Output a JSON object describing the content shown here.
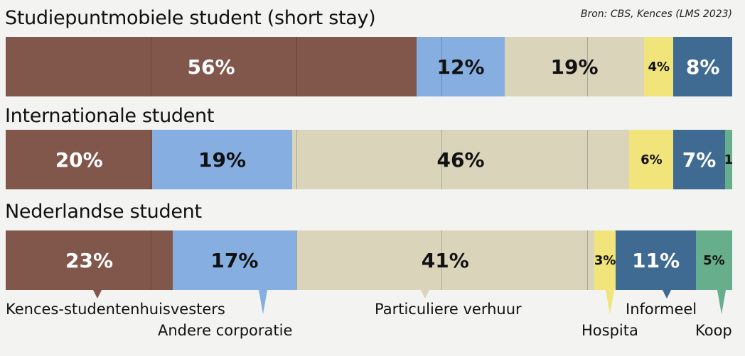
{
  "source": "Bron: CBS, Kences (LMS 2023)",
  "categories": [
    {
      "name": "Kences-studentenhuisvesters",
      "color": "#82574b",
      "text": "#ffffff"
    },
    {
      "name": "Andere corporatie",
      "color": "#86aee0",
      "text": "#111111"
    },
    {
      "name": "Particuliere verhuur",
      "color": "#d9d4ba",
      "text": "#111111"
    },
    {
      "name": "Hospita",
      "color": "#f1e47a",
      "text": "#111111"
    },
    {
      "name": "Informeel",
      "color": "#3f6a92",
      "text": "#ffffff"
    },
    {
      "name": "Koop",
      "color": "#66ae8c",
      "text": "#111111"
    }
  ],
  "chart_data": {
    "type": "bar",
    "stacked": true,
    "orientation": "horizontal",
    "categories": [
      "Studiepuntmobiele student  (short stay)",
      "Internationale student",
      "Nederlandse student"
    ],
    "series": [
      {
        "name": "Kences-studentenhuisvesters",
        "values": [
          56,
          20,
          23
        ],
        "labels": [
          "56%",
          "20%",
          "23%"
        ]
      },
      {
        "name": "Andere corporatie",
        "values": [
          12,
          19,
          17
        ],
        "labels": [
          "12%",
          "19%",
          "17%"
        ]
      },
      {
        "name": "Particuliere verhuur",
        "values": [
          19,
          46,
          41
        ],
        "labels": [
          "19%",
          "46%",
          "41%"
        ]
      },
      {
        "name": "Hospita",
        "values": [
          4,
          6,
          3
        ],
        "labels": [
          "4%",
          "6%",
          "3%"
        ]
      },
      {
        "name": "Informeel",
        "values": [
          8,
          7,
          11
        ],
        "labels": [
          "8%",
          "7%",
          "11%"
        ]
      },
      {
        "name": "Koop",
        "values": [
          0,
          1,
          5
        ],
        "labels": [
          "",
          "1",
          "5%"
        ]
      }
    ],
    "xlim": [
      0,
      100
    ],
    "legend": "bottom"
  }
}
